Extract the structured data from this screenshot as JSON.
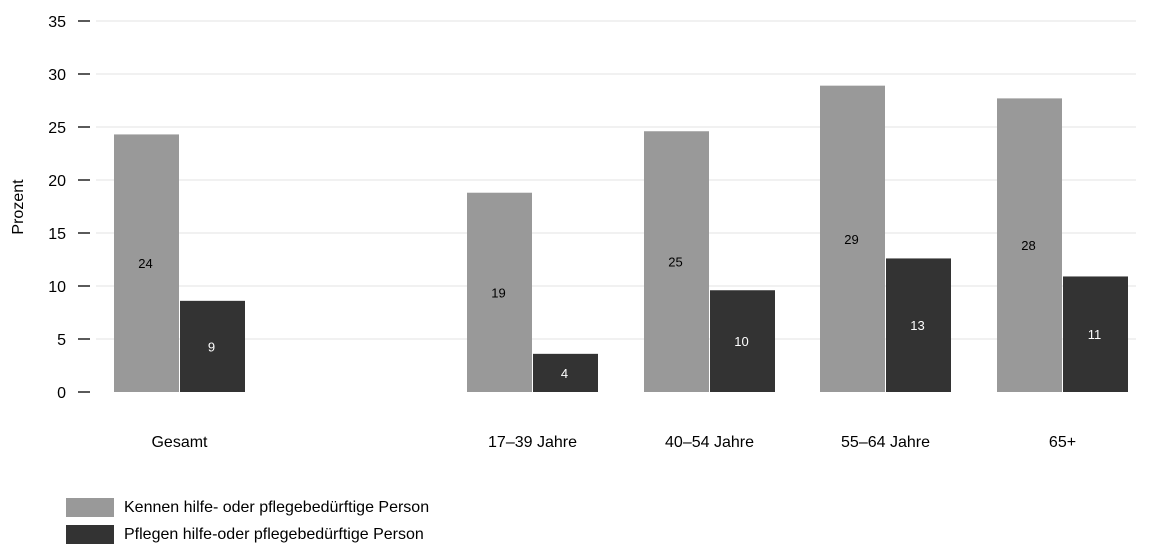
{
  "chart_data": {
    "type": "bar",
    "title": "",
    "xlabel": "",
    "ylabel": "Prozent",
    "ylim": [
      0,
      35
    ],
    "yticks": [
      0,
      5,
      10,
      15,
      20,
      25,
      30,
      35
    ],
    "grid": true,
    "legend_position": "bottom-left",
    "categories": [
      "Gesamt",
      "17–39 Jahre",
      "40–54 Jahre",
      "55–64 Jahre",
      "65+"
    ],
    "series": [
      {
        "name": "Kennen hilfe- oder pflegebedürftige Person",
        "color": "#999999",
        "label_color": "#000000",
        "values": [
          24.3,
          18.8,
          24.6,
          28.9,
          27.7
        ],
        "labels": [
          "24",
          "19",
          "25",
          "29",
          "28"
        ]
      },
      {
        "name": "Pflegen hilfe-oder pflegebedürftige Person",
        "color": "#333333",
        "label_color": "#ffffff",
        "values": [
          8.6,
          3.6,
          9.6,
          12.6,
          10.9
        ],
        "labels": [
          "9",
          "4",
          "10",
          "13",
          "11"
        ]
      }
    ]
  }
}
